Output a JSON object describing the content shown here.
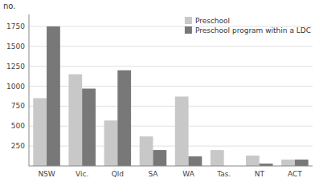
{
  "chart_data": {
    "type": "bar",
    "ylabel": "no.",
    "categories": [
      "NSW",
      "Vic.",
      "Qld",
      "SA",
      "WA",
      "Tas.",
      "NT",
      "ACT"
    ],
    "series": [
      {
        "name": "Preschool",
        "color": "#c8c8c8",
        "values": [
          850,
          1150,
          570,
          370,
          870,
          200,
          130,
          80
        ]
      },
      {
        "name": "Preschool program within a LDC",
        "color": "#787878",
        "values": [
          1750,
          970,
          1200,
          200,
          120,
          0,
          30,
          80
        ]
      }
    ],
    "ylim": [
      0,
      1900
    ],
    "yticks": [
      250,
      500,
      750,
      1000,
      1250,
      1500,
      1750
    ],
    "grid": true,
    "legend": "upper-right"
  }
}
